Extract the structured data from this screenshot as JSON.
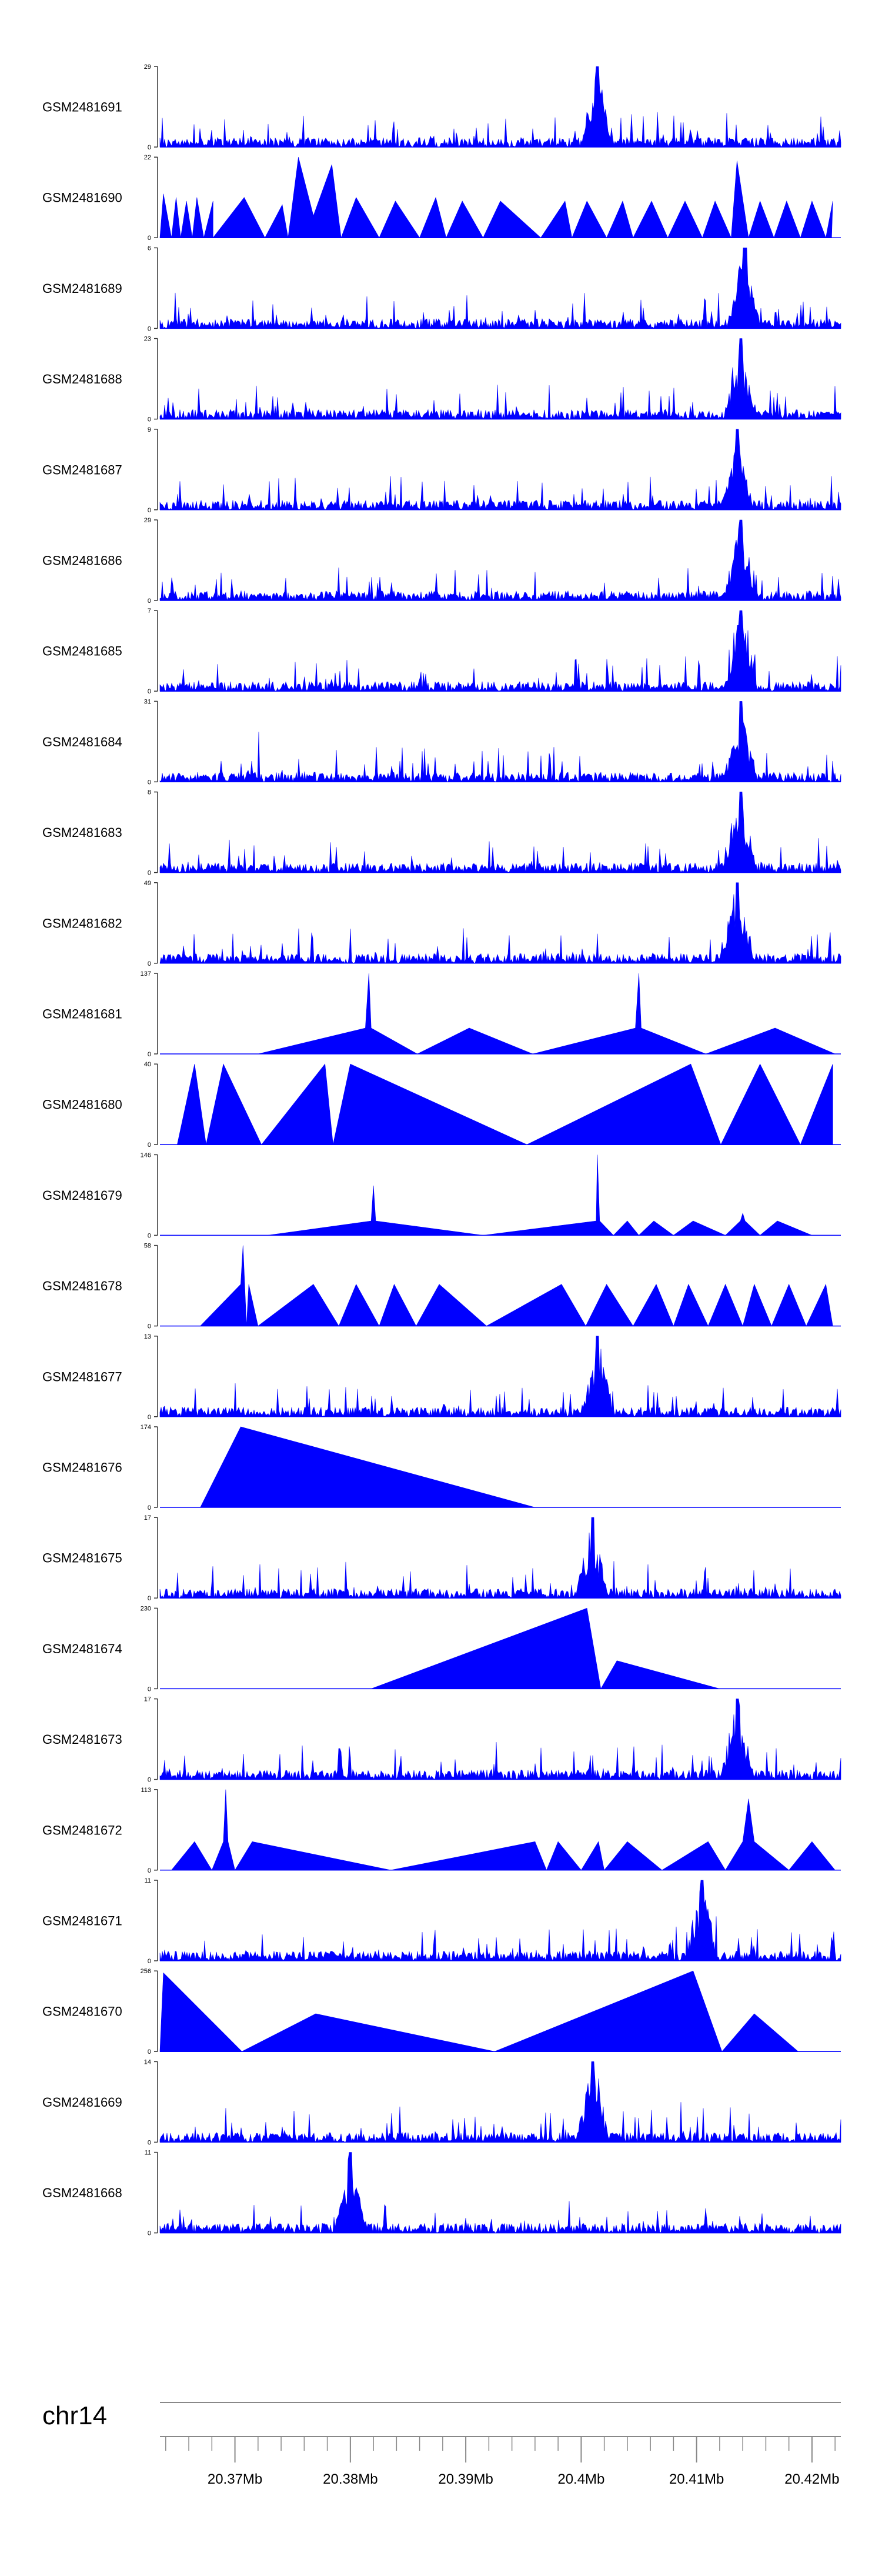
{
  "chart_data": {
    "type": "area",
    "title": "",
    "color": "#0000ff",
    "x_unit": "Mb",
    "xlim_mb": [
      20.3635,
      20.4225
    ],
    "x_ticks": [
      20.37,
      20.38,
      20.39,
      20.4,
      20.41,
      20.42
    ],
    "x_tick_labels": [
      "20.37Mb",
      "20.38Mb",
      "20.39Mb",
      "20.4Mb",
      "20.41Mb",
      "20.42Mb"
    ],
    "chromosome_label": "chr14",
    "tracks": [
      {
        "name": "GSM2481691",
        "ymax": 29,
        "peak_mb": 20.4014,
        "pattern": "noise",
        "seed": 11
      },
      {
        "name": "GSM2481690",
        "ymax": 22,
        "pattern": "triangles",
        "seed": 12,
        "points": [
          [
            20.3635,
            0
          ],
          [
            20.3638,
            12
          ],
          [
            20.3645,
            0
          ],
          [
            20.3649,
            11
          ],
          [
            20.3653,
            0
          ],
          [
            20.3658,
            10
          ],
          [
            20.3663,
            0
          ],
          [
            20.3667,
            11
          ],
          [
            20.3673,
            0
          ],
          [
            20.3681,
            10
          ],
          [
            20.3681,
            0
          ],
          [
            20.3708,
            11
          ],
          [
            20.3726,
            0
          ],
          [
            20.3741,
            9
          ],
          [
            20.3746,
            0
          ],
          [
            20.3755,
            22
          ],
          [
            20.3768,
            6
          ],
          [
            20.3784,
            20
          ],
          [
            20.3792,
            0
          ],
          [
            20.3805,
            11
          ],
          [
            20.3825,
            0
          ],
          [
            20.3839,
            10
          ],
          [
            20.386,
            0
          ],
          [
            20.3874,
            11
          ],
          [
            20.3883,
            0
          ],
          [
            20.3897,
            10
          ],
          [
            20.3915,
            0
          ],
          [
            20.393,
            10
          ],
          [
            20.3965,
            0
          ],
          [
            20.3986,
            10
          ],
          [
            20.3992,
            0
          ],
          [
            20.4005,
            10
          ],
          [
            20.4022,
            0
          ],
          [
            20.4036,
            10
          ],
          [
            20.4045,
            0
          ],
          [
            20.4061,
            10
          ],
          [
            20.4075,
            0
          ],
          [
            20.409,
            10
          ],
          [
            20.4105,
            0
          ],
          [
            20.4116,
            10
          ],
          [
            20.413,
            0
          ],
          [
            20.4135,
            21
          ],
          [
            20.4145,
            0
          ],
          [
            20.4155,
            10
          ],
          [
            20.4167,
            0
          ],
          [
            20.4178,
            10
          ],
          [
            20.419,
            0
          ],
          [
            20.42,
            10
          ],
          [
            20.4212,
            0
          ],
          [
            20.4218,
            10
          ],
          [
            20.4217,
            0
          ]
        ]
      },
      {
        "name": "GSM2481689",
        "ymax": 6,
        "peak_mb": 20.4141,
        "pattern": "noise",
        "seed": 13
      },
      {
        "name": "GSM2481688",
        "ymax": 23,
        "peak_mb": 20.4138,
        "pattern": "noise",
        "seed": 14
      },
      {
        "name": "GSM2481687",
        "ymax": 9,
        "peak_mb": 20.4135,
        "pattern": "noise",
        "seed": 15
      },
      {
        "name": "GSM2481686",
        "ymax": 29,
        "peak_mb": 20.4138,
        "pattern": "noise",
        "seed": 16
      },
      {
        "name": "GSM2481685",
        "ymax": 7,
        "peak_mb": 20.4138,
        "pattern": "noise",
        "seed": 17
      },
      {
        "name": "GSM2481684",
        "ymax": 31,
        "peak_mb": 20.4138,
        "pattern": "noise",
        "seed": 18
      },
      {
        "name": "GSM2481683",
        "ymax": 8,
        "peak_mb": 20.4138,
        "pattern": "noise",
        "seed": 19
      },
      {
        "name": "GSM2481682",
        "ymax": 49,
        "peak_mb": 20.4135,
        "pattern": "noise",
        "seed": 20
      },
      {
        "name": "GSM2481681",
        "ymax": 137,
        "pattern": "triangles",
        "points": [
          [
            20.372,
            0
          ],
          [
            20.3813,
            44
          ],
          [
            20.3816,
            137
          ],
          [
            20.3818,
            44
          ],
          [
            20.3858,
            0
          ],
          [
            20.3903,
            44
          ],
          [
            20.3958,
            0
          ],
          [
            20.4047,
            44
          ],
          [
            20.405,
            137
          ],
          [
            20.4052,
            44
          ],
          [
            20.4108,
            0
          ],
          [
            20.4168,
            44
          ],
          [
            20.422,
            0
          ]
        ]
      },
      {
        "name": "GSM2481680",
        "ymax": 40,
        "pattern": "triangles",
        "points": [
          [
            20.365,
            0
          ],
          [
            20.3665,
            40
          ],
          [
            20.3675,
            0
          ],
          [
            20.369,
            40
          ],
          [
            20.3723,
            0
          ],
          [
            20.3778,
            40
          ],
          [
            20.3785,
            0
          ],
          [
            20.38,
            40
          ],
          [
            20.3953,
            0
          ],
          [
            20.4095,
            40
          ],
          [
            20.4121,
            0
          ],
          [
            20.4155,
            40
          ],
          [
            20.419,
            0
          ],
          [
            20.4218,
            40
          ],
          [
            20.4218,
            0
          ]
        ]
      },
      {
        "name": "GSM2481679",
        "ymax": 146,
        "pattern": "triangles",
        "points": [
          [
            20.3728,
            0
          ],
          [
            20.3818,
            26
          ],
          [
            20.382,
            90
          ],
          [
            20.3822,
            26
          ],
          [
            20.3915,
            0
          ],
          [
            20.4013,
            26
          ],
          [
            20.4014,
            146
          ],
          [
            20.4016,
            26
          ],
          [
            20.4028,
            0
          ],
          [
            20.404,
            26
          ],
          [
            20.405,
            0
          ],
          [
            20.4063,
            26
          ],
          [
            20.408,
            0
          ],
          [
            20.4097,
            26
          ],
          [
            20.4125,
            0
          ],
          [
            20.4138,
            26
          ],
          [
            20.414,
            40
          ],
          [
            20.4142,
            26
          ],
          [
            20.4155,
            0
          ],
          [
            20.417,
            26
          ],
          [
            20.42,
            0
          ]
        ]
      },
      {
        "name": "GSM2481678",
        "ymax": 58,
        "pattern": "triangles",
        "points": [
          [
            20.367,
            0
          ],
          [
            20.3705,
            30
          ],
          [
            20.3707,
            58
          ],
          [
            20.371,
            0
          ],
          [
            20.3712,
            30
          ],
          [
            20.372,
            0
          ],
          [
            20.3768,
            30
          ],
          [
            20.379,
            0
          ],
          [
            20.3805,
            30
          ],
          [
            20.3825,
            0
          ],
          [
            20.3838,
            30
          ],
          [
            20.3857,
            0
          ],
          [
            20.3877,
            30
          ],
          [
            20.3918,
            0
          ],
          [
            20.3983,
            30
          ],
          [
            20.4004,
            0
          ],
          [
            20.4022,
            30
          ],
          [
            20.4045,
            0
          ],
          [
            20.4065,
            30
          ],
          [
            20.408,
            0
          ],
          [
            20.4093,
            30
          ],
          [
            20.411,
            0
          ],
          [
            20.4125,
            30
          ],
          [
            20.414,
            0
          ],
          [
            20.415,
            30
          ],
          [
            20.4165,
            0
          ],
          [
            20.418,
            30
          ],
          [
            20.4195,
            0
          ],
          [
            20.4212,
            30
          ],
          [
            20.4218,
            0
          ]
        ]
      },
      {
        "name": "GSM2481677",
        "ymax": 13,
        "peak_mb": 20.4014,
        "pattern": "noise",
        "seed": 21
      },
      {
        "name": "GSM2481676",
        "ymax": 174,
        "pattern": "triangles",
        "points": [
          [
            20.367,
            0
          ],
          [
            20.3705,
            174
          ],
          [
            20.396,
            0
          ]
        ]
      },
      {
        "name": "GSM2481675",
        "ymax": 17,
        "peak_mb": 20.401,
        "pattern": "noise",
        "seed": 22
      },
      {
        "name": "GSM2481674",
        "ymax": 230,
        "pattern": "triangles",
        "points": [
          [
            20.3818,
            0
          ],
          [
            20.4005,
            230
          ],
          [
            20.4017,
            0
          ],
          [
            20.4031,
            80
          ],
          [
            20.412,
            0
          ]
        ]
      },
      {
        "name": "GSM2481673",
        "ymax": 17,
        "peak_mb": 20.4135,
        "pattern": "noise",
        "seed": 23
      },
      {
        "name": "GSM2481672",
        "ymax": 113,
        "pattern": "triangles",
        "points": [
          [
            20.3645,
            0
          ],
          [
            20.3665,
            40
          ],
          [
            20.368,
            0
          ],
          [
            20.369,
            40
          ],
          [
            20.3692,
            113
          ],
          [
            20.3694,
            40
          ],
          [
            20.37,
            0
          ],
          [
            20.3715,
            40
          ],
          [
            20.3835,
            0
          ],
          [
            20.396,
            40
          ],
          [
            20.397,
            0
          ],
          [
            20.398,
            40
          ],
          [
            20.4,
            0
          ],
          [
            20.4015,
            40
          ],
          [
            20.402,
            0
          ],
          [
            20.404,
            40
          ],
          [
            20.407,
            0
          ],
          [
            20.411,
            40
          ],
          [
            20.4125,
            0
          ],
          [
            20.414,
            40
          ],
          [
            20.4145,
            100
          ],
          [
            20.415,
            40
          ],
          [
            20.418,
            0
          ],
          [
            20.42,
            40
          ],
          [
            20.422,
            0
          ]
        ]
      },
      {
        "name": "GSM2481671",
        "ymax": 11,
        "peak_mb": 20.4105,
        "pattern": "noise",
        "seed": 24
      },
      {
        "name": "GSM2481670",
        "ymax": 256,
        "pattern": "triangles",
        "points": [
          [
            20.3635,
            0
          ],
          [
            20.3638,
            250
          ],
          [
            20.3706,
            0
          ],
          [
            20.377,
            120
          ],
          [
            20.3925,
            0
          ],
          [
            20.4097,
            256
          ],
          [
            20.4122,
            0
          ],
          [
            20.415,
            120
          ],
          [
            20.4188,
            0
          ]
        ]
      },
      {
        "name": "GSM2481669",
        "ymax": 14,
        "peak_mb": 20.401,
        "pattern": "noise",
        "seed": 25
      },
      {
        "name": "GSM2481668",
        "ymax": 11,
        "peak_mb": 20.38,
        "pattern": "noise",
        "seed": 26
      }
    ]
  }
}
